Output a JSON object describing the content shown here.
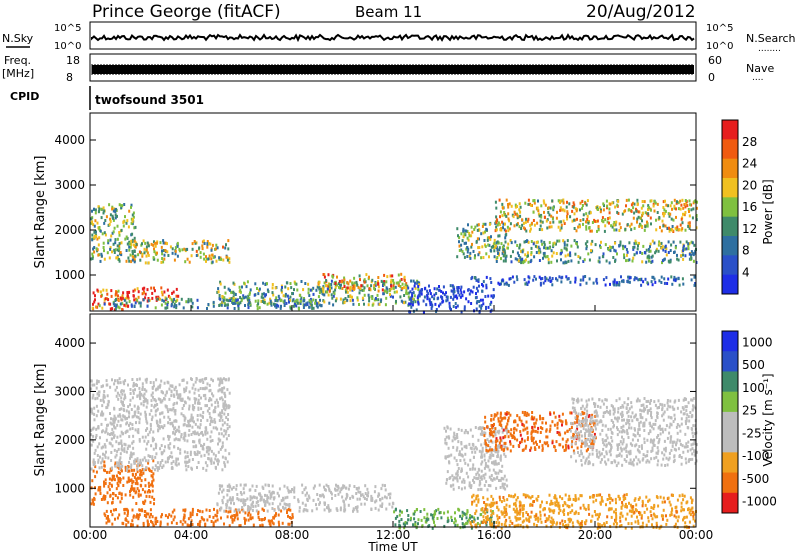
{
  "header": {
    "station": "Prince George (fitACF)",
    "beam": "Beam 11",
    "date": "20/Aug/2012"
  },
  "left_labels": {
    "nsky": "N.Sky",
    "freq": "Freq.",
    "freq_unit": "[MHz]",
    "cpid": "CPID"
  },
  "right_labels": {
    "nsearch": "N.Search",
    "nave": "Nave",
    "dots": "........"
  },
  "noise_axis": {
    "top": "10^5",
    "bottom": "10^0"
  },
  "freq_axis": {
    "top": "18",
    "bottom": "8"
  },
  "nave_axis": {
    "top": "60",
    "bottom": "0"
  },
  "cpid_text": "twofsound 3501",
  "colors": {
    "power_scale": [
      "#1e2ee6",
      "#2a50c8",
      "#2e6fa0",
      "#3f8a6a",
      "#7fc040",
      "#f0c020",
      "#f08c10",
      "#f05a10",
      "#e61e1e"
    ],
    "velocity_scale": [
      "#1e2ee6",
      "#2a50c8",
      "#3f8a6a",
      "#7fc040",
      "#bdbdbd",
      "#bdbdbd",
      "#f0a020",
      "#f07010",
      "#e61e1e"
    ],
    "ground_scatter": "#bdbdbd"
  },
  "chart_data": [
    {
      "type": "heatmap",
      "name": "power",
      "ylabel": "Slant Range [km]",
      "ylim": [
        200,
        4600
      ],
      "yticks": [
        "1000",
        "2000",
        "3000",
        "4000"
      ],
      "colorbar_label": "Power [dB]",
      "colorbar_ticks": [
        "4",
        "8",
        "12",
        "16",
        "20",
        "24",
        "28"
      ],
      "regions": [
        {
          "t0": 0.0,
          "t1": 1.5,
          "r0": 250,
          "r1": 700,
          "value": 26
        },
        {
          "t0": 1.0,
          "t1": 3.5,
          "r0": 450,
          "r1": 750,
          "value": 28
        },
        {
          "t0": 0.0,
          "t1": 1.8,
          "r0": 1300,
          "r1": 2600,
          "value": 14
        },
        {
          "t0": 1.5,
          "t1": 5.5,
          "r0": 1300,
          "r1": 1800,
          "value": 16
        },
        {
          "t0": 5.0,
          "t1": 13.0,
          "r0": 350,
          "r1": 900,
          "value": 12
        },
        {
          "t0": 9.0,
          "t1": 12.5,
          "r0": 650,
          "r1": 1050,
          "value": 20
        },
        {
          "t0": 0.5,
          "t1": 9.0,
          "r0": 280,
          "r1": 500,
          "value": 10
        },
        {
          "t0": 14.5,
          "t1": 16.5,
          "r0": 1400,
          "r1": 2200,
          "value": 14
        },
        {
          "t0": 16.0,
          "t1": 24.0,
          "r0": 2000,
          "r1": 2700,
          "value": 18
        },
        {
          "t0": 16.0,
          "t1": 24.0,
          "r0": 1300,
          "r1": 1800,
          "value": 12
        },
        {
          "t0": 15.0,
          "t1": 24.0,
          "r0": 800,
          "r1": 1000,
          "value": 6
        },
        {
          "t0": 12.5,
          "t1": 16.0,
          "r0": 200,
          "r1": 800,
          "value": 4
        }
      ]
    },
    {
      "type": "heatmap",
      "name": "velocity",
      "ylabel": "Slant Range [km]",
      "xlabel": "Time UT",
      "ylim": [
        200,
        4600
      ],
      "yticks": [
        "1000",
        "2000",
        "3000",
        "4000"
      ],
      "xticks": [
        "00:00",
        "04:00",
        "08:00",
        "12:00",
        "16:00",
        "20:00",
        "00:00"
      ],
      "colorbar_label": "Velocity [m s⁻¹]",
      "colorbar_ticks": [
        "1000",
        "500",
        "100",
        "25",
        "-25",
        "-100",
        "-500",
        "-1000"
      ],
      "regions": [
        {
          "t0": 0.0,
          "t1": 2.5,
          "r0": 700,
          "r1": 1600,
          "value": -300
        },
        {
          "t0": 0.5,
          "t1": 8.0,
          "r0": 250,
          "r1": 600,
          "value": -150
        },
        {
          "t0": 0.0,
          "t1": 5.5,
          "r0": 1400,
          "r1": 3300,
          "value": 0
        },
        {
          "t0": 5.0,
          "t1": 12.0,
          "r0": 550,
          "r1": 1100,
          "value": 0
        },
        {
          "t0": 12.0,
          "t1": 16.0,
          "r0": 200,
          "r1": 600,
          "value": 60
        },
        {
          "t0": 14.0,
          "t1": 16.5,
          "r0": 1000,
          "r1": 2300,
          "value": 0
        },
        {
          "t0": 15.5,
          "t1": 20.0,
          "r0": 1800,
          "r1": 2600,
          "value": -400
        },
        {
          "t0": 19.0,
          "t1": 24.0,
          "r0": 1500,
          "r1": 2900,
          "value": 0
        },
        {
          "t0": 15.0,
          "t1": 24.0,
          "r0": 200,
          "r1": 900,
          "value": -80
        }
      ]
    }
  ]
}
